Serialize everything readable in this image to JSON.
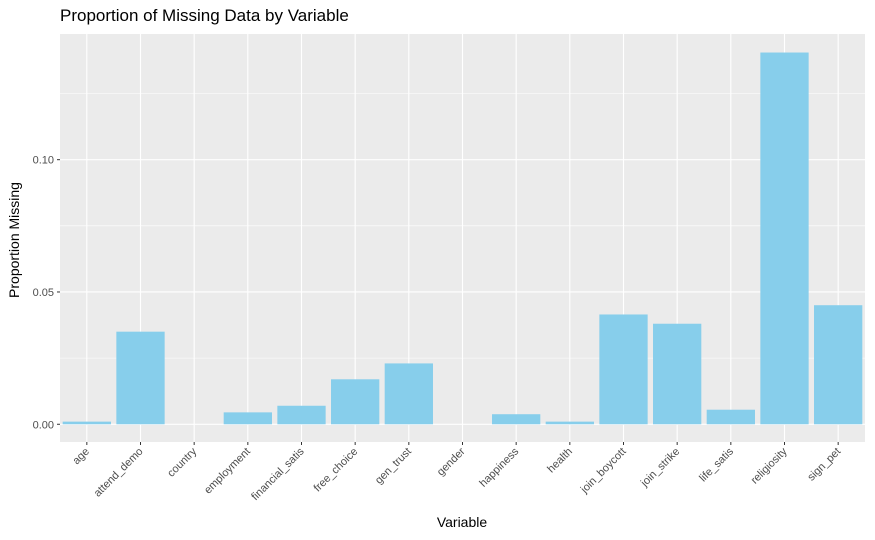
{
  "chart_data": {
    "type": "bar",
    "title": "Proportion of Missing Data by Variable",
    "xlabel": "Variable",
    "ylabel": "Proportion Missing",
    "categories": [
      "age",
      "attend_demo",
      "country",
      "employment",
      "financial_satis",
      "free_choice",
      "gen_trust",
      "gender",
      "happiness",
      "health",
      "join_boycott",
      "join_strike",
      "life_satis",
      "religiosity",
      "sign_pet"
    ],
    "values": [
      0.001,
      0.035,
      0.0,
      0.0045,
      0.007,
      0.017,
      0.023,
      0.0,
      0.0038,
      0.001,
      0.0415,
      0.038,
      0.0055,
      0.1405,
      0.045
    ],
    "ylim": [
      -0.0067,
      0.1475
    ],
    "yticks": [
      0.0,
      0.05,
      0.1
    ],
    "ytick_labels": [
      "0.00",
      "0.05",
      "0.10"
    ],
    "grid": true,
    "legend": "none",
    "bar_color": "#87CEEB",
    "panel_color": "#EBEBEB",
    "grid_color": "#FFFFFF"
  }
}
